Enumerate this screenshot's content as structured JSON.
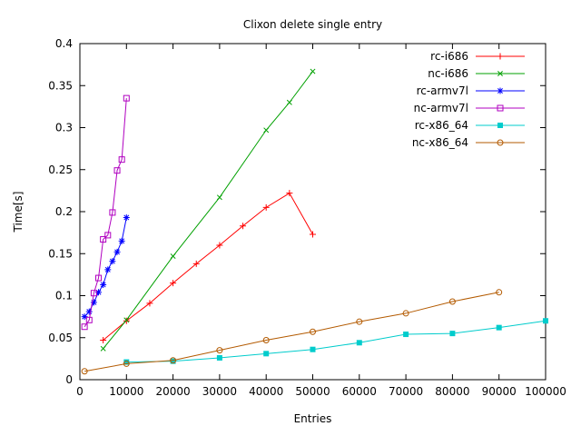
{
  "chart_data": {
    "type": "line",
    "title": "Clixon delete single entry",
    "xlabel": "Entries",
    "ylabel": "Time[s]",
    "xlim": [
      0,
      100000
    ],
    "ylim": [
      0,
      0.4
    ],
    "xticks": [
      0,
      10000,
      20000,
      30000,
      40000,
      50000,
      60000,
      70000,
      80000,
      90000,
      100000
    ],
    "xticklabels": [
      "0",
      "10000",
      "20000",
      "30000",
      "40000",
      "50000",
      "60000",
      "70000",
      "80000",
      "90000",
      "100000"
    ],
    "yticks": [
      0,
      0.05,
      0.1,
      0.15,
      0.2,
      0.25,
      0.3,
      0.35,
      0.4
    ],
    "yticklabels": [
      "0",
      "0.05",
      "0.1",
      "0.15",
      "0.2",
      "0.25",
      "0.3",
      "0.35",
      "0.4"
    ],
    "grid": false,
    "legend_position": "top-right-inside",
    "axis_color": "#000000",
    "background_color": "#ffffff",
    "series": [
      {
        "name": "rc-i686",
        "color": "#ff0000",
        "marker": "plus",
        "x": [
          5000,
          10000,
          15000,
          20000,
          25000,
          30000,
          35000,
          40000,
          45000,
          50000
        ],
        "y": [
          0.047,
          0.07,
          0.091,
          0.115,
          0.138,
          0.16,
          0.183,
          0.205,
          0.222,
          0.173
        ]
      },
      {
        "name": "nc-i686",
        "color": "#00a000",
        "marker": "cross",
        "x": [
          5000,
          10000,
          20000,
          30000,
          40000,
          45000,
          50000
        ],
        "y": [
          0.037,
          0.071,
          0.147,
          0.217,
          0.297,
          0.33,
          0.367
        ]
      },
      {
        "name": "rc-armv7l",
        "color": "#0000ff",
        "marker": "asterisk",
        "x": [
          1000,
          2000,
          3000,
          4000,
          5000,
          6000,
          7000,
          8000,
          9000,
          10000
        ],
        "y": [
          0.075,
          0.081,
          0.092,
          0.104,
          0.113,
          0.131,
          0.141,
          0.152,
          0.165,
          0.193
        ]
      },
      {
        "name": "nc-armv7l",
        "color": "#b000c0",
        "marker": "square-open",
        "x": [
          1000,
          2000,
          3000,
          4000,
          5000,
          6000,
          7000,
          8000,
          9000,
          10000
        ],
        "y": [
          0.063,
          0.071,
          0.103,
          0.121,
          0.167,
          0.172,
          0.199,
          0.249,
          0.262,
          0.335
        ]
      },
      {
        "name": "rc-x86_64",
        "color": "#00cccc",
        "marker": "square-filled",
        "x": [
          10000,
          20000,
          30000,
          40000,
          50000,
          60000,
          70000,
          80000,
          90000,
          100000
        ],
        "y": [
          0.021,
          0.022,
          0.026,
          0.031,
          0.036,
          0.044,
          0.054,
          0.055,
          0.062,
          0.07
        ]
      },
      {
        "name": "nc-x86_64",
        "color": "#b35a00",
        "marker": "circle-open",
        "x": [
          1000,
          10000,
          20000,
          30000,
          40000,
          50000,
          60000,
          70000,
          80000,
          90000
        ],
        "y": [
          0.01,
          0.019,
          0.023,
          0.035,
          0.047,
          0.057,
          0.069,
          0.079,
          0.093,
          0.104
        ]
      }
    ]
  }
}
